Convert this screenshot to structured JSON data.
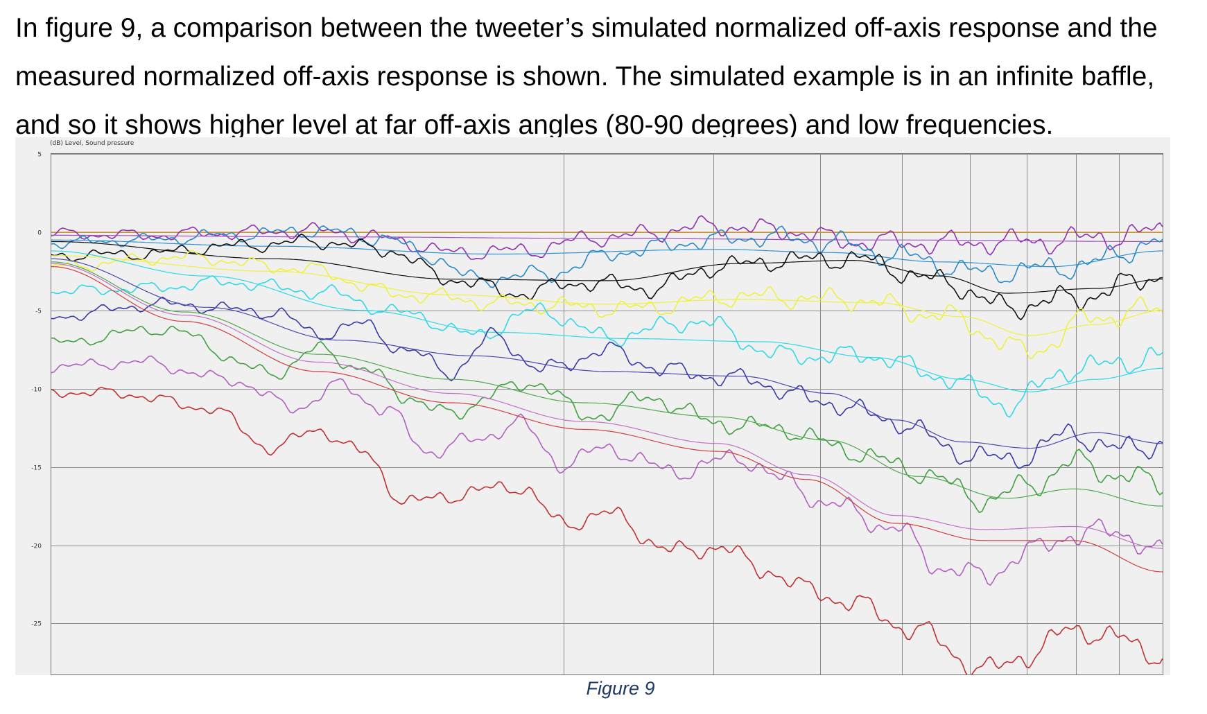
{
  "document": {
    "paragraph": "In figure 9, a comparison between the tweeter’s simulated normalized off-axis response and the measured normalized off-axis response is shown. The simulated example is in an infinite baffle, and so it shows higher level at far off-axis angles (80-90 degrees) and low frequencies.",
    "caption": "Figure 9"
  },
  "chart_data": {
    "type": "line",
    "title": "",
    "ylabel": "(dB) Level, Sound pressure",
    "xlabel": "",
    "x_scale": "log",
    "y_ticks": [
      "5",
      "0",
      "-5",
      "-10",
      "-15",
      "-20",
      "-25"
    ],
    "ylim": [
      -28.3,
      5
    ],
    "xlim": [
      0,
      1
    ],
    "grid": true,
    "legend": "none",
    "series": [
      {
        "color": "#e8a020",
        "style": "simulated",
        "x": [
          0,
          1
        ],
        "y": [
          0,
          0
        ]
      },
      {
        "color": "#9030b0",
        "style": "measured",
        "x": [
          0,
          0.08,
          0.16,
          0.24,
          0.3,
          0.36,
          0.42,
          0.5,
          0.6,
          0.66,
          0.72,
          0.8,
          0.88,
          0.96,
          1
        ],
        "y": [
          -0.1,
          -0.2,
          -0.05,
          0.1,
          -0.4,
          -1.3,
          -1.2,
          -0.3,
          0.4,
          0.1,
          -0.6,
          -0.7,
          -0.6,
          -0.3,
          0.1
        ]
      },
      {
        "color": "#a050c0",
        "style": "simulated",
        "x": [
          0,
          0.25,
          0.5,
          0.75,
          1
        ],
        "y": [
          -0.2,
          -0.3,
          -0.4,
          -0.5,
          -0.6
        ]
      },
      {
        "color": "#2a88c8",
        "style": "measured",
        "x": [
          0,
          0.08,
          0.16,
          0.24,
          0.3,
          0.34,
          0.38,
          0.44,
          0.52,
          0.58,
          0.64,
          0.7,
          0.76,
          0.84,
          0.92,
          1
        ],
        "y": [
          -0.7,
          -0.5,
          -0.2,
          0.1,
          -0.4,
          -1.5,
          -3.0,
          -2.7,
          -1.2,
          -0.6,
          -0.3,
          -0.6,
          -1.5,
          -2.6,
          -2.2,
          -0.6
        ]
      },
      {
        "color": "#3090d0",
        "style": "simulated",
        "x": [
          0,
          0.2,
          0.4,
          0.6,
          0.7,
          0.8,
          0.9,
          1
        ],
        "y": [
          -0.5,
          -0.9,
          -1.4,
          -1.1,
          -1.3,
          -1.9,
          -2.2,
          -1.2
        ]
      },
      {
        "color": "#101010",
        "style": "measured",
        "x": [
          0,
          0.08,
          0.16,
          0.24,
          0.3,
          0.36,
          0.42,
          0.48,
          0.54,
          0.6,
          0.66,
          0.72,
          0.8,
          0.86,
          0.92,
          1
        ],
        "y": [
          -1.5,
          -1.4,
          -0.9,
          -0.6,
          -1.1,
          -3.0,
          -3.9,
          -3.2,
          -3.6,
          -2.2,
          -1.8,
          -1.7,
          -3.1,
          -4.8,
          -4.2,
          -2.8
        ]
      },
      {
        "color": "#101010",
        "style": "simulated",
        "x": [
          0,
          0.2,
          0.36,
          0.5,
          0.62,
          0.72,
          0.8,
          0.86,
          0.94,
          1
        ],
        "y": [
          -0.6,
          -1.7,
          -3.0,
          -3.1,
          -2.0,
          -1.8,
          -2.8,
          -3.9,
          -3.6,
          -3.0
        ]
      },
      {
        "color": "#f0f040",
        "style": "measured",
        "x": [
          0,
          0.12,
          0.22,
          0.32,
          0.42,
          0.52,
          0.62,
          0.72,
          0.8,
          0.88,
          0.94,
          1
        ],
        "y": [
          -2.2,
          -1.6,
          -2.3,
          -4.0,
          -4.6,
          -4.9,
          -4.1,
          -4.3,
          -5.3,
          -7.6,
          -5.4,
          -4.9
        ]
      },
      {
        "color": "#f0f040",
        "style": "simulated",
        "x": [
          0,
          0.2,
          0.36,
          0.5,
          0.62,
          0.74,
          0.82,
          0.88,
          0.94,
          1
        ],
        "y": [
          -1.5,
          -2.5,
          -4.0,
          -4.6,
          -4.3,
          -4.5,
          -5.4,
          -6.6,
          -5.9,
          -5.0
        ]
      },
      {
        "color": "#30d8e8",
        "style": "measured",
        "x": [
          0,
          0.08,
          0.16,
          0.24,
          0.32,
          0.38,
          0.44,
          0.5,
          0.58,
          0.66,
          0.74,
          0.8,
          0.86,
          0.92,
          1
        ],
        "y": [
          -3.8,
          -3.6,
          -3.2,
          -3.8,
          -5.2,
          -6.6,
          -5.0,
          -6.7,
          -5.7,
          -7.9,
          -7.9,
          -9.2,
          -11.0,
          -8.7,
          -8.0
        ]
      },
      {
        "color": "#30d8e8",
        "style": "simulated",
        "x": [
          0,
          0.14,
          0.28,
          0.4,
          0.52,
          0.64,
          0.74,
          0.82,
          0.88,
          0.94,
          1
        ],
        "y": [
          -1.2,
          -2.8,
          -5.0,
          -6.4,
          -6.8,
          -7.0,
          -8.0,
          -9.4,
          -10.2,
          -9.4,
          -8.7
        ]
      },
      {
        "color": "#3838a8",
        "style": "measured",
        "x": [
          0,
          0.1,
          0.2,
          0.24,
          0.28,
          0.32,
          0.36,
          0.4,
          0.44,
          0.5,
          0.56,
          0.62,
          0.7,
          0.76,
          0.82,
          0.86,
          0.92,
          0.96,
          1
        ],
        "y": [
          -5.4,
          -4.6,
          -5.1,
          -6.5,
          -5.9,
          -7.6,
          -8.9,
          -6.6,
          -8.8,
          -7.6,
          -8.9,
          -9.4,
          -10.9,
          -12.1,
          -14.1,
          -14.6,
          -12.9,
          -13.9,
          -13.5
        ]
      },
      {
        "color": "#4848b0",
        "style": "simulated",
        "x": [
          0,
          0.14,
          0.26,
          0.38,
          0.5,
          0.62,
          0.7,
          0.76,
          0.82,
          0.88,
          0.94,
          1
        ],
        "y": [
          -1.7,
          -4.8,
          -6.9,
          -7.9,
          -8.9,
          -9.2,
          -10.3,
          -12.0,
          -13.4,
          -13.8,
          -12.8,
          -13.5
        ]
      },
      {
        "color": "#40a040",
        "style": "measured",
        "x": [
          0,
          0.1,
          0.2,
          0.24,
          0.28,
          0.32,
          0.36,
          0.4,
          0.44,
          0.48,
          0.54,
          0.6,
          0.66,
          0.72,
          0.78,
          0.84,
          0.88,
          0.92,
          0.96,
          1
        ],
        "y": [
          -7.1,
          -6.2,
          -9.0,
          -7.5,
          -8.7,
          -10.5,
          -11.7,
          -10.2,
          -9.6,
          -11.8,
          -10.6,
          -12.2,
          -12.6,
          -14.0,
          -15.3,
          -17.1,
          -16.2,
          -14.7,
          -15.5,
          -16.1
        ]
      },
      {
        "color": "#50a850",
        "style": "simulated",
        "x": [
          0,
          0.12,
          0.24,
          0.36,
          0.48,
          0.6,
          0.7,
          0.78,
          0.86,
          0.92,
          1
        ],
        "y": [
          -1.9,
          -5.1,
          -7.8,
          -9.4,
          -10.9,
          -11.8,
          -13.3,
          -15.6,
          -17.0,
          -16.4,
          -17.5
        ]
      },
      {
        "color": "#b060c0",
        "style": "measured",
        "x": [
          0,
          0.08,
          0.16,
          0.22,
          0.26,
          0.3,
          0.34,
          0.38,
          0.42,
          0.46,
          0.5,
          0.56,
          0.62,
          0.66,
          0.7,
          0.76,
          0.8,
          0.84,
          0.88,
          0.92,
          0.96,
          1
        ],
        "y": [
          -8.6,
          -8.3,
          -9.4,
          -11.2,
          -9.8,
          -11.3,
          -14.0,
          -13.3,
          -12.2,
          -14.8,
          -13.8,
          -15.3,
          -14.4,
          -15.9,
          -17.4,
          -18.9,
          -21.4,
          -22.0,
          -20.4,
          -19.3,
          -19.1,
          -20.6
        ]
      },
      {
        "color": "#c070c8",
        "style": "simulated",
        "x": [
          0,
          0.12,
          0.24,
          0.36,
          0.48,
          0.6,
          0.68,
          0.76,
          0.84,
          0.92,
          1
        ],
        "y": [
          -2.0,
          -5.3,
          -8.3,
          -10.3,
          -12.1,
          -13.5,
          -15.5,
          -18.1,
          -19.0,
          -18.8,
          -20.2
        ]
      },
      {
        "color": "#c03030",
        "style": "measured",
        "x": [
          0,
          0.06,
          0.14,
          0.2,
          0.24,
          0.28,
          0.32,
          0.36,
          0.42,
          0.46,
          0.5,
          0.56,
          0.6,
          0.64,
          0.68,
          0.72,
          0.78,
          0.84,
          0.88,
          0.92,
          0.96,
          1
        ],
        "y": [
          -10.2,
          -10.3,
          -11.2,
          -13.8,
          -12.6,
          -14.1,
          -17.3,
          -16.8,
          -16.2,
          -18.6,
          -18.0,
          -20.4,
          -20.1,
          -21.5,
          -22.8,
          -23.7,
          -25.5,
          -28.0,
          -27.0,
          -25.3,
          -26.0,
          -27.0
        ]
      },
      {
        "color": "#d04040",
        "style": "simulated",
        "x": [
          0,
          0.12,
          0.24,
          0.36,
          0.48,
          0.6,
          0.68,
          0.76,
          0.84,
          0.92,
          1
        ],
        "y": [
          -2.2,
          -5.7,
          -8.9,
          -10.9,
          -12.6,
          -14.0,
          -15.8,
          -18.6,
          -19.7,
          -19.7,
          -21.7
        ]
      }
    ]
  }
}
